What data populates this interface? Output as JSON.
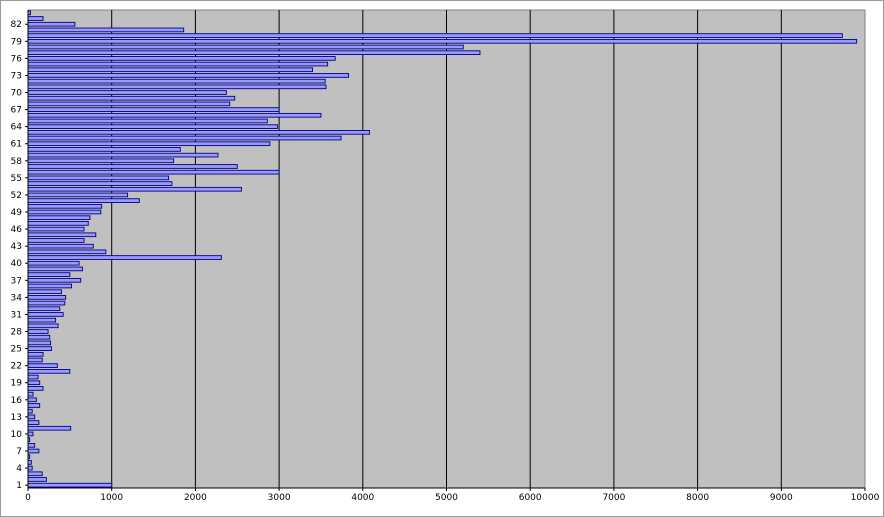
{
  "chart_data": {
    "type": "bar",
    "orientation": "horizontal",
    "title": "",
    "xlabel": "",
    "ylabel": "",
    "xlim": [
      0,
      10000
    ],
    "x_ticks": [
      0,
      1000,
      2000,
      3000,
      4000,
      5000,
      6000,
      7000,
      8000,
      9000,
      10000
    ],
    "y_tick_labels": [
      "1",
      "4",
      "7",
      "10",
      "13",
      "16",
      "19",
      "22",
      "25",
      "28",
      "31",
      "34",
      "37",
      "40",
      "43",
      "46",
      "49",
      "52",
      "55",
      "58",
      "61",
      "64",
      "67",
      "70",
      "73",
      "76",
      "79",
      "82"
    ],
    "categories": [
      "1",
      "2",
      "3",
      "4",
      "5",
      "6",
      "7",
      "8",
      "9",
      "10",
      "11",
      "12",
      "13",
      "14",
      "15",
      "16",
      "17",
      "18",
      "19",
      "20",
      "21",
      "22",
      "23",
      "24",
      "25",
      "26",
      "27",
      "28",
      "29",
      "30",
      "31",
      "32",
      "33",
      "34",
      "35",
      "36",
      "37",
      "38",
      "39",
      "40",
      "41",
      "42",
      "43",
      "44",
      "45",
      "46",
      "47",
      "48",
      "49",
      "50",
      "51",
      "52",
      "53",
      "54",
      "55",
      "56",
      "57",
      "58",
      "59",
      "60",
      "61",
      "62",
      "63",
      "64",
      "65",
      "66",
      "67",
      "68",
      "69",
      "70",
      "71",
      "72",
      "73",
      "74",
      "75",
      "76",
      "77",
      "78",
      "79",
      "80",
      "81",
      "82",
      "83",
      "84"
    ],
    "values": [
      1000,
      220,
      170,
      50,
      40,
      20,
      130,
      80,
      20,
      60,
      510,
      130,
      80,
      50,
      140,
      100,
      60,
      180,
      140,
      120,
      500,
      350,
      170,
      180,
      280,
      270,
      260,
      240,
      360,
      330,
      420,
      380,
      440,
      450,
      400,
      520,
      630,
      500,
      650,
      610,
      2310,
      930,
      780,
      670,
      810,
      670,
      720,
      740,
      870,
      880,
      1330,
      1190,
      2550,
      1720,
      1680,
      3000,
      2500,
      1740,
      2270,
      1820,
      2890,
      3740,
      4080,
      2980,
      2860,
      3500,
      3000,
      2410,
      2470,
      2370,
      3560,
      3550,
      3830,
      3400,
      3580,
      3670,
      5400,
      5200,
      9900,
      9730,
      1860,
      560,
      180,
      30
    ],
    "grid": true,
    "legend": "none",
    "colors": {
      "plot_background": "#c0c0c0",
      "bar_fill": "#9999ff",
      "bar_stroke": "#000080",
      "gridline": "#000000"
    }
  }
}
